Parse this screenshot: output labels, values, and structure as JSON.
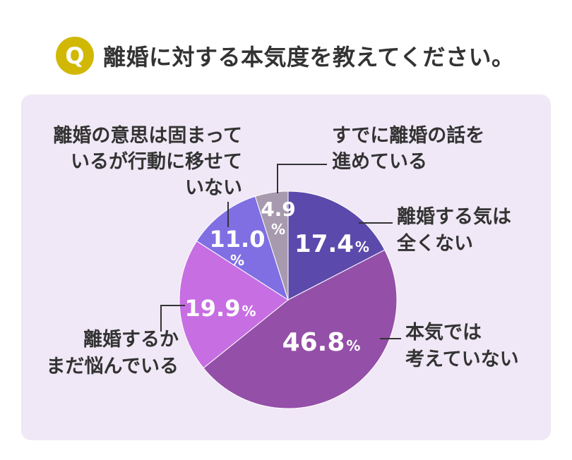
{
  "header": {
    "badge": "Q",
    "question": "離婚に対する本気度を教えてください。"
  },
  "chart_data": {
    "type": "pie",
    "title": "離婚に対する本気度を教えてください。",
    "unit": "%",
    "start_angle_deg": 0,
    "direction": "clockwise",
    "slices": [
      {
        "label_lines": [
          "離婚する気は",
          "全くない"
        ],
        "value": 17.4,
        "value_text": "17.4",
        "color": "#5b4aab"
      },
      {
        "label_lines": [
          "本気では",
          "考えていない"
        ],
        "value": 46.8,
        "value_text": "46.8",
        "color": "#944fa8"
      },
      {
        "label_lines": [
          "離婚するか",
          "まだ悩んでいる"
        ],
        "value": 19.9,
        "value_text": "19.9",
        "color": "#c76ee3"
      },
      {
        "label_lines": [
          "離婚の意思は固まって",
          "いるが行動に移せて",
          "いない"
        ],
        "value": 11.0,
        "value_text": "11.0",
        "color": "#7f6fe3"
      },
      {
        "label_lines": [
          "すでに離婚の話を",
          "進めている"
        ],
        "value": 4.9,
        "value_text": "4.9",
        "color": "#a89aae"
      }
    ]
  }
}
